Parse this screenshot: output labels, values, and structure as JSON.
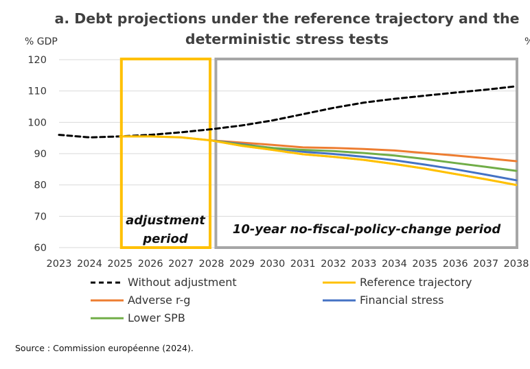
{
  "chart_data": {
    "type": "line",
    "title_lines": [
      "a. Debt projections under the reference trajectory and the",
      "deterministic stress tests"
    ],
    "ylabel": "% GDP",
    "right_edge_mark": "%",
    "ylim": [
      60,
      120
    ],
    "yticks": [
      60,
      70,
      80,
      90,
      100,
      110,
      120
    ],
    "xlim": [
      2023,
      2038
    ],
    "xticks": [
      2023,
      2024,
      2025,
      2026,
      2027,
      2028,
      2029,
      2030,
      2031,
      2032,
      2033,
      2034,
      2035,
      2036,
      2037,
      2038
    ],
    "grid": "horizontal",
    "shaded_periods": [
      {
        "label_lines": [
          "adjustment",
          "period"
        ],
        "x_range": [
          2025,
          2028
        ],
        "color": "#FFC000"
      },
      {
        "label_lines": [
          "10-year no-fiscal-policy-change period"
        ],
        "x_range": [
          2028.1,
          2038
        ],
        "color": "#A6A6A6"
      }
    ],
    "series": [
      {
        "name": "Without adjustment",
        "color": "#000000",
        "dashed": true,
        "x": [
          2023,
          2024,
          2025,
          2026,
          2027,
          2028,
          2029,
          2030,
          2031,
          2032,
          2033,
          2034,
          2035,
          2036,
          2037,
          2038
        ],
        "y": [
          96,
          95.2,
          95.5,
          96,
          96.8,
          97.8,
          99,
          100.6,
          102.6,
          104.6,
          106.3,
          107.5,
          108.5,
          109.5,
          110.4,
          111.5
        ]
      },
      {
        "name": "Reference trajectory",
        "color": "#FFC000",
        "dashed": false,
        "x": [
          2025,
          2026,
          2027,
          2028,
          2029,
          2030,
          2031,
          2032,
          2033,
          2034,
          2035,
          2036,
          2037,
          2038
        ],
        "y": [
          95.5,
          95.5,
          95.2,
          94.2,
          92.5,
          91.2,
          89.8,
          89,
          88,
          86.7,
          85.2,
          83.5,
          81.8,
          80
        ]
      },
      {
        "name": "Adverse r-g",
        "color": "#ED7D31",
        "dashed": false,
        "x": [
          2028,
          2029,
          2030,
          2031,
          2032,
          2033,
          2034,
          2035,
          2036,
          2037,
          2038
        ],
        "y": [
          94.2,
          93.5,
          92.8,
          92,
          91.8,
          91.5,
          91,
          90.2,
          89.4,
          88.5,
          87.6
        ]
      },
      {
        "name": "Financial stress",
        "color": "#4472C4",
        "dashed": false,
        "x": [
          2028,
          2029,
          2030,
          2031,
          2032,
          2033,
          2034,
          2035,
          2036,
          2037,
          2038
        ],
        "y": [
          94.2,
          93,
          91.8,
          90.6,
          89.9,
          89,
          87.9,
          86.5,
          85,
          83.3,
          81.5
        ]
      },
      {
        "name": "Lower SPB",
        "color": "#70AD47",
        "dashed": false,
        "x": [
          2028,
          2029,
          2030,
          2031,
          2032,
          2033,
          2034,
          2035,
          2036,
          2037,
          2038
        ],
        "y": [
          94.2,
          92.8,
          91.8,
          91.2,
          90.8,
          90.2,
          89.4,
          88.3,
          87,
          85.8,
          84.5
        ]
      }
    ],
    "legend_order": [
      "Without adjustment",
      "Reference trajectory",
      "Adverse r-g",
      "Financial stress",
      "Lower SPB"
    ],
    "legend_position": "bottom"
  },
  "source_text": "Source : Commission européenne (2024)."
}
